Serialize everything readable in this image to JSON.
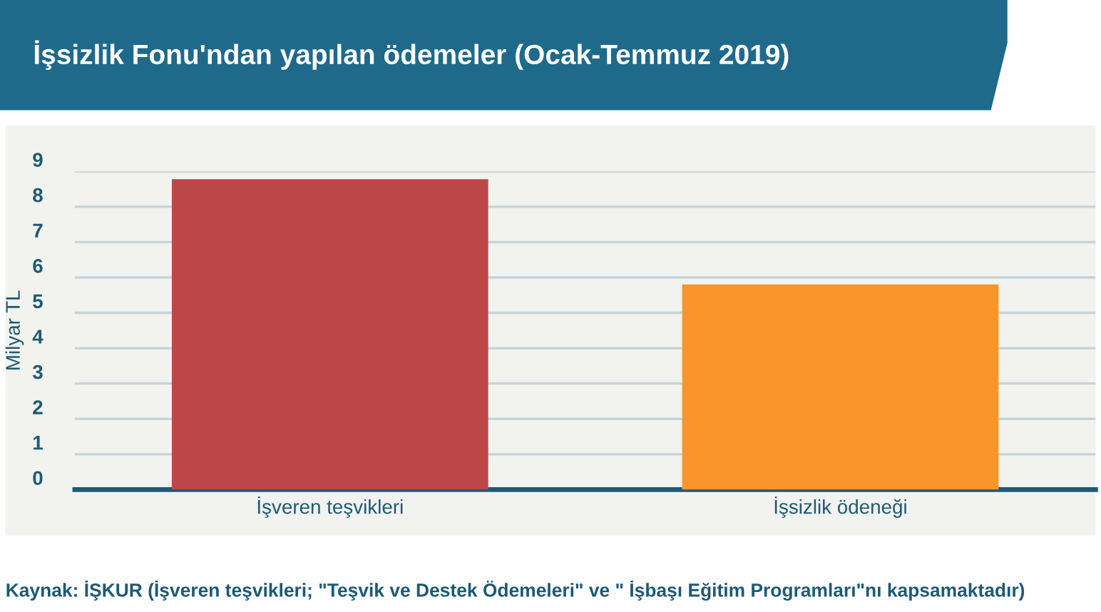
{
  "chart_data": {
    "type": "bar",
    "title": "İşsizlik Fonu'ndan yapılan ödemeler (Ocak-Temmuz 2019)",
    "ylabel": "Milyar TL",
    "categories": [
      "İşveren teşvikleri",
      "İşsizlik ödeneği"
    ],
    "values": [
      8.78,
      5.8
    ],
    "colors": [
      "#bc4749",
      "#f8952b"
    ],
    "ylim": [
      0,
      9
    ],
    "yticks": [
      0,
      1,
      2,
      3,
      4,
      5,
      6,
      7,
      8,
      9
    ],
    "grid": "y",
    "legend": false,
    "annotations": [
      "Kaynak: İŞKUR (İşveren teşvikleri; \"Teşvik ve Destek Ödemeleri\" ve \" İşbaşı Eğitim Programları\"nı kapsamaktadır)"
    ]
  }
}
